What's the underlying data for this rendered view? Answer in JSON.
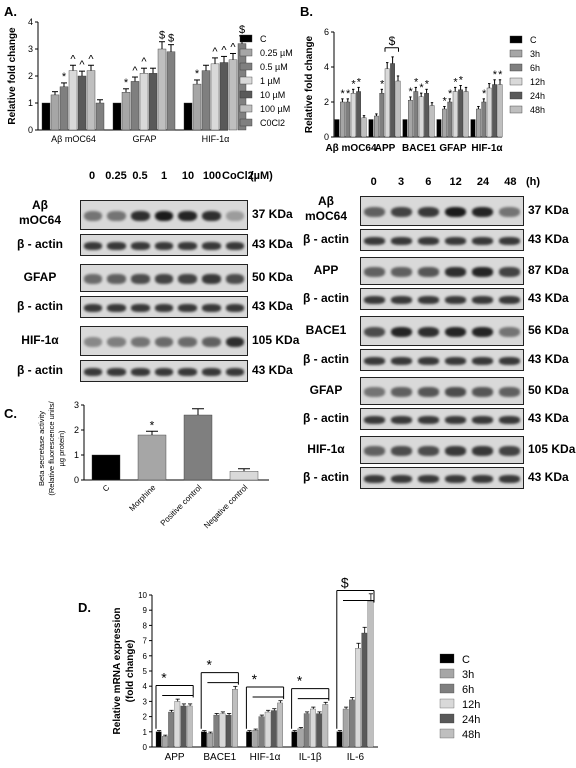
{
  "panelA": {
    "label": "A.",
    "chart_data": {
      "type": "bar",
      "ylabel": "Relative fold change",
      "ylim": [
        0,
        4
      ],
      "yticks": [
        "0",
        "1",
        "2",
        "3",
        "4"
      ],
      "categories": [
        "Aβ mOC64",
        "GFAP",
        "HIF-1α"
      ],
      "series": [
        {
          "name": "C",
          "color": "#000000",
          "values": [
            1.0,
            1.0,
            1.0
          ]
        },
        {
          "name": "0.25 µM",
          "color": "#a6a6a6",
          "values": [
            1.3,
            1.4,
            1.7
          ]
        },
        {
          "name": "0.5 µM",
          "color": "#7f7f7f",
          "values": [
            1.6,
            1.8,
            2.2
          ]
        },
        {
          "name": "1 µM",
          "color": "#d9d9d9",
          "values": [
            2.2,
            2.1,
            2.45
          ]
        },
        {
          "name": "10 µM",
          "color": "#595959",
          "values": [
            2.0,
            2.1,
            2.5
          ]
        },
        {
          "name": "100 µM",
          "color": "#bfbfbf",
          "values": [
            2.2,
            3.0,
            2.6
          ]
        },
        {
          "name": "C0Cl2",
          "color": "#808080",
          "values": [
            1.0,
            2.9,
            3.2
          ]
        }
      ],
      "annotations": [
        "*",
        "^",
        "^",
        "^",
        "*",
        "^",
        "^",
        "$",
        "$",
        "*",
        "^",
        "^",
        "^",
        "$"
      ]
    },
    "blot_header": {
      "cols": [
        "0",
        "0.25",
        "0.5",
        "1",
        "10",
        "100",
        "CoCl2"
      ],
      "unit": "(µM)"
    },
    "blots": [
      {
        "label": "Aβ\nmOC64",
        "label1": "Aβ",
        "label2": "mOC64",
        "kda": "37 KDa"
      },
      {
        "label": "β - actin",
        "kda": "43 KDa"
      },
      {
        "label": "GFAP",
        "kda": "50 KDa"
      },
      {
        "label": "β - actin",
        "kda": "43 KDa"
      },
      {
        "label": "HIF-1α",
        "kda": "105 KDa"
      },
      {
        "label": "β - actin",
        "kda": "43 KDa"
      }
    ]
  },
  "panelB": {
    "label": "B.",
    "chart_data": {
      "type": "bar",
      "ylabel": "Relative fold change",
      "ylim": [
        0,
        6
      ],
      "yticks": [
        "0",
        "2",
        "4",
        "6"
      ],
      "categories": [
        "Aβ mOC64",
        "APP",
        "BACE1",
        "GFAP",
        "HIF-1α"
      ],
      "series": [
        {
          "name": "C",
          "color": "#000000",
          "values": [
            1.0,
            1.0,
            1.0,
            1.0,
            1.0
          ]
        },
        {
          "name": "3h",
          "color": "#a6a6a6",
          "values": [
            2.0,
            1.2,
            2.1,
            1.6,
            1.6
          ]
        },
        {
          "name": "6h",
          "color": "#7f7f7f",
          "values": [
            2.0,
            2.5,
            2.6,
            2.0,
            2.0
          ]
        },
        {
          "name": "12h",
          "color": "#d9d9d9",
          "values": [
            2.5,
            3.9,
            2.3,
            2.6,
            2.8
          ]
        },
        {
          "name": "24h",
          "color": "#595959",
          "values": [
            2.6,
            4.2,
            2.5,
            2.7,
            3.0
          ]
        },
        {
          "name": "48h",
          "color": "#bfbfbf",
          "values": [
            1.1,
            3.2,
            1.8,
            2.6,
            3.0
          ]
        }
      ],
      "annotations": [
        "*",
        "*",
        "*",
        "*",
        "*",
        "$",
        "*",
        "*",
        "*",
        "*",
        "*",
        "*",
        "*",
        "*",
        "*",
        "*"
      ]
    },
    "blot_header": {
      "cols": [
        "0",
        "3",
        "6",
        "12",
        "24",
        "48"
      ],
      "unit": "(h)"
    },
    "blots": [
      {
        "label1": "Aβ",
        "label2": "mOC64",
        "kda": "37 KDa"
      },
      {
        "label": "β - actin",
        "kda": "43 KDa"
      },
      {
        "label": "APP",
        "kda": "87 KDa"
      },
      {
        "label": "β - actin",
        "kda": "43 KDa"
      },
      {
        "label": "BACE1",
        "kda": "56 KDa"
      },
      {
        "label": "β - actin",
        "kda": "43 KDa"
      },
      {
        "label": "GFAP",
        "kda": "50 KDa"
      },
      {
        "label": "β - actin",
        "kda": "43 KDa"
      },
      {
        "label": "HIF-1α",
        "kda": "105 KDa"
      },
      {
        "label": "β - actin",
        "kda": "43 KDa"
      }
    ]
  },
  "panelC": {
    "label": "C.",
    "chart_data": {
      "type": "bar",
      "ylabel1": "Beta secretase activity",
      "ylabel2": "(Relative fluorescence units/",
      "ylabel3": "µg protein)",
      "ylim": [
        0,
        3
      ],
      "yticks": [
        "0",
        "1",
        "2",
        "3"
      ],
      "categories": [
        "C",
        "Morphine",
        "Positive control",
        "Negative control"
      ],
      "colors": [
        "#000000",
        "#a6a6a6",
        "#7f7f7f",
        "#d9d9d9"
      ],
      "values": [
        1.0,
        1.8,
        2.6,
        0.35
      ],
      "errors": [
        0,
        0.15,
        0.25,
        0.1
      ],
      "annotations": [
        "",
        "*",
        "",
        ""
      ]
    }
  },
  "panelD": {
    "label": "D.",
    "chart_data": {
      "type": "bar",
      "ylabel1": "Relative mRNA expression",
      "ylabel2": "(fold change)",
      "ylim": [
        0,
        10
      ],
      "yticks": [
        "0",
        "1",
        "2",
        "3",
        "4",
        "5",
        "6",
        "7",
        "8",
        "9",
        "10"
      ],
      "categories": [
        "APP",
        "BACE1",
        "HIF-1α",
        "IL-1β",
        "IL-6"
      ],
      "series": [
        {
          "name": "C",
          "color": "#000000",
          "values": [
            1.0,
            1.0,
            1.0,
            1.0,
            1.0
          ]
        },
        {
          "name": "3h",
          "color": "#a6a6a6",
          "values": [
            0.7,
            0.9,
            1.1,
            1.2,
            2.5
          ]
        },
        {
          "name": "6h",
          "color": "#7f7f7f",
          "values": [
            2.3,
            2.1,
            2.0,
            2.2,
            3.1
          ]
        },
        {
          "name": "12h",
          "color": "#d9d9d9",
          "values": [
            3.0,
            2.2,
            2.3,
            2.5,
            6.5
          ]
        },
        {
          "name": "24h",
          "color": "#595959",
          "values": [
            2.7,
            2.1,
            2.4,
            2.2,
            7.5
          ]
        },
        {
          "name": "48h",
          "color": "#bfbfbf",
          "values": [
            2.7,
            3.8,
            2.9,
            2.8,
            9.6
          ]
        }
      ],
      "annotations": [
        "*",
        "*",
        "*",
        "*",
        "$"
      ]
    }
  }
}
